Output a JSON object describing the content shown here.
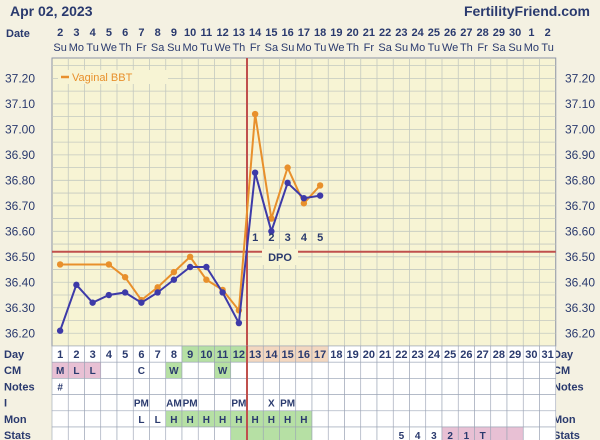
{
  "header": {
    "date": "Apr 02, 2023",
    "site": "FertilityFriend.com",
    "date_label": "Date",
    "dates": [
      "2",
      "3",
      "4",
      "5",
      "6",
      "7",
      "8",
      "9",
      "10",
      "11",
      "12",
      "13",
      "14",
      "15",
      "16",
      "17",
      "18",
      "19",
      "20",
      "21",
      "22",
      "23",
      "24",
      "25",
      "26",
      "27",
      "28",
      "29",
      "30",
      "1",
      "2"
    ],
    "weekdays": [
      "Su",
      "Mo",
      "Tu",
      "We",
      "Th",
      "Fr",
      "Sa",
      "Su",
      "Mo",
      "Tu",
      "We",
      "Th",
      "Fr",
      "Sa",
      "Su",
      "Mo",
      "Tu",
      "We",
      "Th",
      "Fr",
      "Sa",
      "Su",
      "Mo",
      "Tu",
      "We",
      "Th",
      "Fr",
      "Sa",
      "Su",
      "Mo",
      "Tu"
    ]
  },
  "chart_data": {
    "type": "line",
    "title": "",
    "xlabel": "Day",
    "ylabel": "",
    "ylim": [
      36.15,
      37.28
    ],
    "yticks": [
      "37.20",
      "37.10",
      "37.00",
      "36.90",
      "36.80",
      "36.70",
      "36.60",
      "36.50",
      "36.40",
      "36.30",
      "36.20"
    ],
    "x": [
      1,
      2,
      3,
      4,
      5,
      6,
      7,
      8,
      9,
      10,
      11,
      12,
      13,
      14,
      15,
      16,
      17,
      18,
      19,
      20,
      21,
      22,
      23,
      24,
      25,
      26,
      27,
      28,
      29,
      30,
      31
    ],
    "grid": true,
    "legend": {
      "position": "top-left"
    },
    "series": [
      {
        "name": "Vaginal BBT",
        "color": "#e8902c",
        "style": "line",
        "points": [
          [
            1,
            36.47
          ],
          [
            4,
            36.47
          ],
          [
            5,
            36.42
          ],
          [
            6,
            36.33
          ],
          [
            7,
            36.38
          ],
          [
            8,
            36.44
          ],
          [
            9,
            36.5
          ],
          [
            10,
            36.41
          ],
          [
            11,
            36.37
          ],
          [
            12,
            36.29
          ],
          [
            13,
            37.06
          ],
          [
            14,
            36.65
          ],
          [
            15,
            36.85
          ],
          [
            16,
            36.71
          ],
          [
            17,
            36.78
          ]
        ]
      },
      {
        "name": "",
        "color": "#3d3aa8",
        "style": "line",
        "points": [
          [
            1,
            36.21
          ],
          [
            2,
            36.39
          ],
          [
            3,
            36.32
          ],
          [
            4,
            36.35
          ],
          [
            5,
            36.36
          ],
          [
            6,
            36.32
          ],
          [
            7,
            36.36
          ],
          [
            8,
            36.41
          ],
          [
            9,
            36.46
          ],
          [
            10,
            36.46
          ],
          [
            11,
            36.36
          ],
          [
            12,
            36.24
          ],
          [
            13,
            36.83
          ],
          [
            14,
            36.6
          ],
          [
            15,
            36.79
          ],
          [
            16,
            36.73
          ],
          [
            17,
            36.74
          ]
        ]
      }
    ],
    "coverline": 36.52,
    "ovulation_day": 12,
    "dpo_label": "DPO",
    "dpo": [
      {
        "day": 13,
        "label": "1"
      },
      {
        "day": 14,
        "label": "2"
      },
      {
        "day": 15,
        "label": "3"
      },
      {
        "day": 16,
        "label": "4"
      },
      {
        "day": 17,
        "label": "5"
      }
    ]
  },
  "table": {
    "rows": [
      {
        "label": "Day",
        "values": [
          "1",
          "2",
          "3",
          "4",
          "5",
          "6",
          "7",
          "8",
          "9",
          "10",
          "11",
          "12",
          "13",
          "14",
          "15",
          "16",
          "17",
          "18",
          "19",
          "20",
          "21",
          "22",
          "23",
          "24",
          "25",
          "26",
          "27",
          "28",
          "29",
          "30",
          "31"
        ]
      },
      {
        "label": "CM",
        "values": [
          "M",
          "L",
          "L",
          "",
          "",
          "C",
          "",
          "W",
          "",
          "",
          "W",
          "",
          "",
          "",
          "",
          "",
          "",
          "",
          "",
          "",
          "",
          "",
          "",
          "",
          "",
          "",
          "",
          "",
          "",
          "",
          ""
        ]
      },
      {
        "label": "Notes",
        "values": [
          "#",
          "",
          "",
          "",
          "",
          "",
          "",
          "",
          "",
          "",
          "",
          "",
          "",
          "",
          "",
          "",
          "",
          "",
          "",
          "",
          "",
          "",
          "",
          "",
          "",
          "",
          "",
          "",
          "",
          "",
          ""
        ]
      },
      {
        "label": "I",
        "values": [
          "",
          "",
          "",
          "",
          "",
          "PM",
          "",
          "AM",
          "PM",
          "",
          "",
          "PM",
          "",
          "X",
          "PM",
          "",
          "",
          "",
          "",
          "",
          "",
          "",
          "",
          "",
          "",
          "",
          "",
          "",
          "",
          "",
          ""
        ]
      },
      {
        "label": "Mon",
        "values": [
          "",
          "",
          "",
          "",
          "",
          "L",
          "L",
          "H",
          "H",
          "H",
          "H",
          "H",
          "H",
          "H",
          "H",
          "H",
          "",
          "",
          "",
          "",
          "",
          "",
          "",
          "",
          "",
          "",
          "",
          "",
          "",
          "",
          ""
        ]
      },
      {
        "label": "Stats",
        "values": [
          "",
          "",
          "",
          "",
          "",
          "",
          "",
          "",
          "",
          "",
          "",
          "",
          "",
          "",
          "",
          "",
          "",
          "",
          "",
          "",
          "",
          "5",
          "4",
          "3",
          "2",
          "1",
          "T",
          "",
          "",
          "",
          ""
        ]
      }
    ],
    "colors": {
      "green": "#b6e0a4",
      "pink": "#e8c0d4",
      "peach": "#f3d7c0",
      "border": "#9aa3b5",
      "ovulation_line": "#c0504d"
    }
  }
}
